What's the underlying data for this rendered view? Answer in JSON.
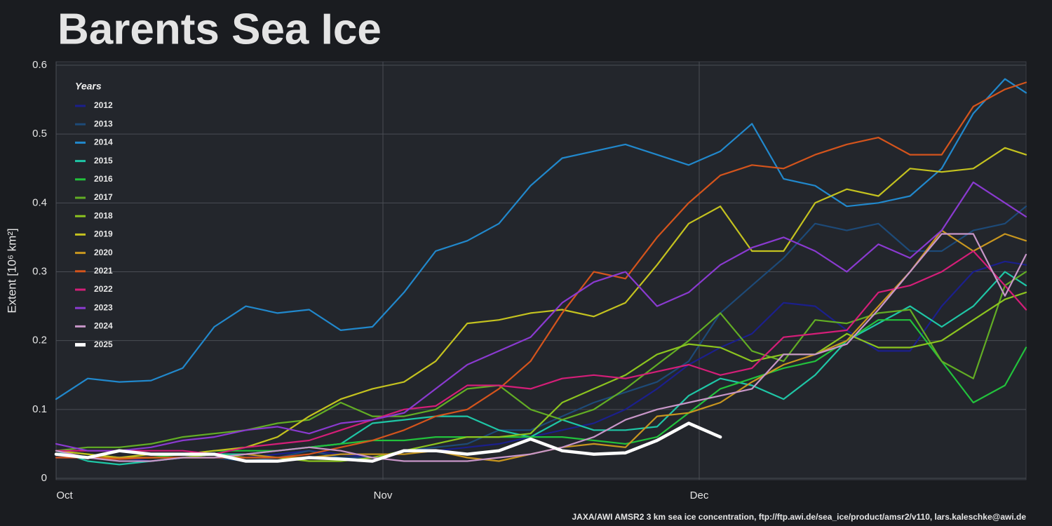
{
  "chart_data": {
    "type": "line",
    "title": "Barents Sea Ice",
    "y_label": "Extent [10⁶ km²]",
    "source": "JAXA/AWI AMSR2 3 km sea ice concentration, ftp://ftp.awi.de/sea_ice/product/amsr2/v110, lars.kaleschke@awi.de",
    "legend_title": "Years",
    "legend": "top-left",
    "grid": true,
    "x": [
      0,
      3,
      6,
      9,
      12,
      15,
      18,
      21,
      24,
      27,
      30,
      33,
      36,
      39,
      42,
      45,
      48,
      51,
      54,
      57,
      60,
      63,
      66,
      69,
      72,
      75,
      78,
      81,
      84,
      87,
      90,
      92
    ],
    "xlim": [
      0,
      92
    ],
    "xticks": [
      {
        "value": 0,
        "label": "Oct"
      },
      {
        "value": 31,
        "label": "Nov"
      },
      {
        "value": 61,
        "label": "Dec"
      }
    ],
    "ylim": [
      0,
      0.6
    ],
    "yticks": [
      0,
      0.1,
      0.2,
      0.3,
      0.4,
      0.5,
      0.6
    ],
    "series": [
      {
        "name": "2012",
        "color": "#1b1f8c",
        "values": [
          0.03,
          0.03,
          0.03,
          0.025,
          0.03,
          0.035,
          0.03,
          0.035,
          0.04,
          0.035,
          0.03,
          0.04,
          0.04,
          0.045,
          0.05,
          0.06,
          0.07,
          0.08,
          0.1,
          0.13,
          0.165,
          0.19,
          0.21,
          0.255,
          0.25,
          0.215,
          0.185,
          0.185,
          0.25,
          0.3,
          0.315,
          0.31
        ]
      },
      {
        "name": "2013",
        "color": "#1d4a78",
        "values": [
          0.03,
          0.03,
          0.025,
          0.025,
          0.03,
          0.03,
          0.025,
          0.03,
          0.04,
          0.03,
          0.03,
          0.04,
          0.045,
          0.05,
          0.07,
          0.07,
          0.09,
          0.11,
          0.125,
          0.14,
          0.17,
          0.24,
          0.28,
          0.32,
          0.37,
          0.36,
          0.37,
          0.33,
          0.33,
          0.36,
          0.37,
          0.395
        ]
      },
      {
        "name": "2014",
        "color": "#2188cc",
        "values": [
          0.115,
          0.145,
          0.14,
          0.142,
          0.16,
          0.22,
          0.25,
          0.24,
          0.245,
          0.215,
          0.22,
          0.27,
          0.33,
          0.345,
          0.37,
          0.425,
          0.465,
          0.475,
          0.485,
          0.47,
          0.455,
          0.475,
          0.515,
          0.435,
          0.425,
          0.395,
          0.4,
          0.41,
          0.45,
          0.53,
          0.58,
          0.56
        ]
      },
      {
        "name": "2015",
        "color": "#1fc6a6",
        "values": [
          0.04,
          0.025,
          0.02,
          0.025,
          0.03,
          0.035,
          0.035,
          0.04,
          0.045,
          0.05,
          0.08,
          0.085,
          0.09,
          0.09,
          0.07,
          0.06,
          0.085,
          0.07,
          0.07,
          0.075,
          0.12,
          0.145,
          0.135,
          0.115,
          0.15,
          0.2,
          0.225,
          0.25,
          0.22,
          0.25,
          0.3,
          0.28
        ]
      },
      {
        "name": "2016",
        "color": "#22c23c",
        "values": [
          0.04,
          0.035,
          0.03,
          0.03,
          0.035,
          0.04,
          0.04,
          0.04,
          0.045,
          0.05,
          0.055,
          0.055,
          0.06,
          0.06,
          0.06,
          0.06,
          0.06,
          0.055,
          0.05,
          0.06,
          0.095,
          0.13,
          0.145,
          0.16,
          0.17,
          0.2,
          0.23,
          0.23,
          0.17,
          0.11,
          0.135,
          0.19
        ]
      },
      {
        "name": "2017",
        "color": "#62ad24",
        "values": [
          0.04,
          0.045,
          0.045,
          0.05,
          0.06,
          0.065,
          0.07,
          0.08,
          0.085,
          0.11,
          0.09,
          0.09,
          0.1,
          0.13,
          0.135,
          0.1,
          0.085,
          0.1,
          0.13,
          0.165,
          0.2,
          0.24,
          0.185,
          0.17,
          0.23,
          0.225,
          0.24,
          0.245,
          0.17,
          0.145,
          0.28,
          0.3
        ]
      },
      {
        "name": "2018",
        "color": "#8cc41f",
        "values": [
          0.035,
          0.03,
          0.03,
          0.03,
          0.03,
          0.035,
          0.03,
          0.03,
          0.025,
          0.025,
          0.03,
          0.04,
          0.05,
          0.06,
          0.06,
          0.065,
          0.11,
          0.13,
          0.15,
          0.18,
          0.195,
          0.19,
          0.17,
          0.18,
          0.18,
          0.21,
          0.19,
          0.19,
          0.2,
          0.23,
          0.26,
          0.27
        ]
      },
      {
        "name": "2019",
        "color": "#c4c21f",
        "values": [
          0.04,
          0.035,
          0.03,
          0.035,
          0.035,
          0.04,
          0.045,
          0.06,
          0.09,
          0.115,
          0.13,
          0.14,
          0.17,
          0.225,
          0.23,
          0.24,
          0.245,
          0.235,
          0.255,
          0.31,
          0.37,
          0.395,
          0.33,
          0.33,
          0.4,
          0.42,
          0.41,
          0.45,
          0.445,
          0.45,
          0.48,
          0.47
        ]
      },
      {
        "name": "2020",
        "color": "#c8961f",
        "values": [
          0.035,
          0.03,
          0.03,
          0.03,
          0.03,
          0.03,
          0.035,
          0.03,
          0.03,
          0.035,
          0.035,
          0.035,
          0.04,
          0.03,
          0.025,
          0.035,
          0.045,
          0.05,
          0.045,
          0.09,
          0.095,
          0.11,
          0.14,
          0.165,
          0.18,
          0.2,
          0.25,
          0.3,
          0.36,
          0.33,
          0.355,
          0.345
        ]
      },
      {
        "name": "2021",
        "color": "#d4541c",
        "values": [
          0.03,
          0.03,
          0.028,
          0.03,
          0.03,
          0.03,
          0.03,
          0.03,
          0.035,
          0.045,
          0.055,
          0.07,
          0.09,
          0.1,
          0.13,
          0.17,
          0.24,
          0.3,
          0.29,
          0.35,
          0.4,
          0.44,
          0.455,
          0.45,
          0.47,
          0.485,
          0.495,
          0.47,
          0.47,
          0.54,
          0.565,
          0.575
        ]
      },
      {
        "name": "2022",
        "color": "#d41e78",
        "values": [
          0.04,
          0.04,
          0.04,
          0.04,
          0.04,
          0.035,
          0.045,
          0.05,
          0.055,
          0.07,
          0.085,
          0.1,
          0.105,
          0.135,
          0.135,
          0.13,
          0.145,
          0.15,
          0.145,
          0.155,
          0.165,
          0.15,
          0.16,
          0.205,
          0.21,
          0.215,
          0.27,
          0.28,
          0.3,
          0.33,
          0.28,
          0.245
        ]
      },
      {
        "name": "2023",
        "color": "#8a3ad0",
        "values": [
          0.05,
          0.04,
          0.04,
          0.045,
          0.055,
          0.06,
          0.07,
          0.075,
          0.065,
          0.08,
          0.085,
          0.095,
          0.13,
          0.165,
          0.185,
          0.205,
          0.255,
          0.285,
          0.3,
          0.25,
          0.27,
          0.31,
          0.335,
          0.35,
          0.33,
          0.3,
          0.34,
          0.32,
          0.36,
          0.43,
          0.4,
          0.38
        ]
      },
      {
        "name": "2024",
        "color": "#c896c8",
        "values": [
          0.04,
          0.03,
          0.025,
          0.025,
          0.03,
          0.03,
          0.035,
          0.04,
          0.045,
          0.04,
          0.03,
          0.025,
          0.025,
          0.025,
          0.03,
          0.035,
          0.045,
          0.06,
          0.085,
          0.1,
          0.11,
          0.12,
          0.13,
          0.18,
          0.18,
          0.195,
          0.245,
          0.3,
          0.355,
          0.355,
          0.265,
          0.325
        ]
      },
      {
        "name": "2025",
        "color": "#ffffff",
        "values": [
          0.035,
          0.03,
          0.04,
          0.035,
          0.035,
          0.035,
          0.025,
          0.025,
          0.03,
          0.028,
          0.025,
          0.04,
          0.04,
          0.035,
          0.04,
          0.057,
          0.04,
          0.035,
          0.037,
          0.055,
          0.08,
          0.06,
          null,
          null,
          null,
          null,
          null,
          null,
          null,
          null,
          null,
          null
        ]
      }
    ]
  }
}
